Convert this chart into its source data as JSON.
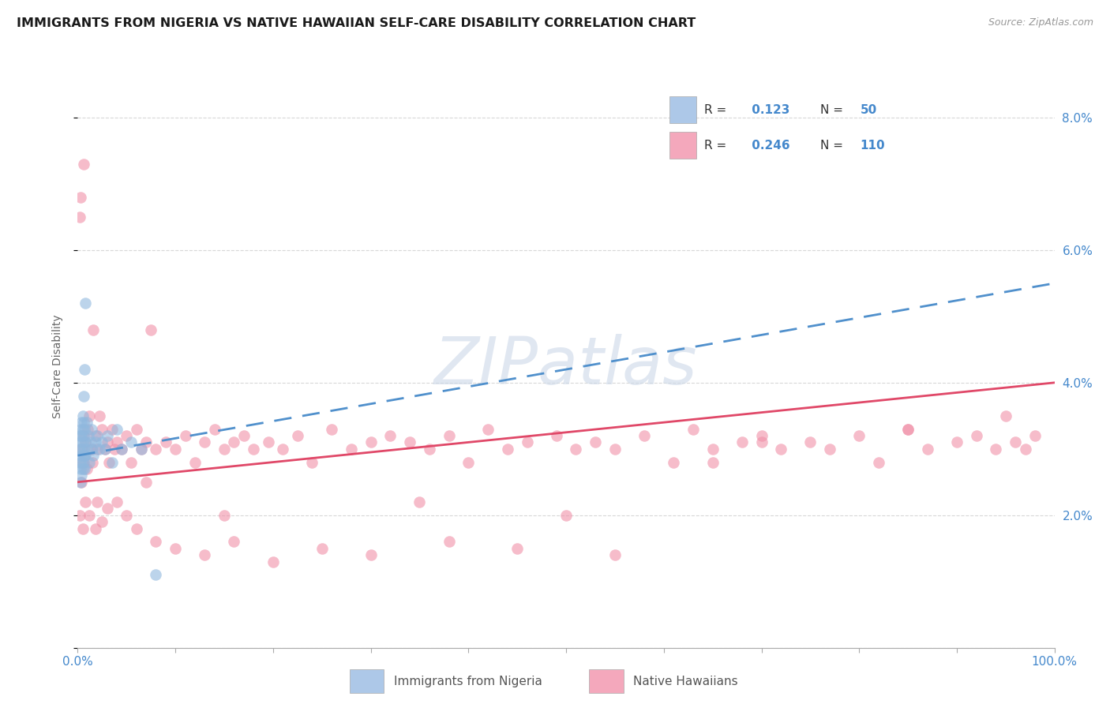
{
  "title": "IMMIGRANTS FROM NIGERIA VS NATIVE HAWAIIAN SELF-CARE DISABILITY CORRELATION CHART",
  "source": "Source: ZipAtlas.com",
  "ylabel": "Self-Care Disability",
  "watermark": "ZIPatlas",
  "xlim": [
    0,
    1.0
  ],
  "ylim": [
    0,
    0.085
  ],
  "legend": {
    "series1_color": "#adc8e8",
    "series2_color": "#f4a8bc",
    "series1_R": "0.123",
    "series1_N": "50",
    "series2_R": "0.246",
    "series2_N": "110"
  },
  "series1_color": "#90b8de",
  "series2_color": "#f090a8",
  "trendline1_color": "#5090cc",
  "trendline2_color": "#e04868",
  "background_color": "#ffffff",
  "grid_color": "#d8d8d8",
  "nigeria_x": [
    0.001,
    0.002,
    0.002,
    0.003,
    0.003,
    0.003,
    0.003,
    0.003,
    0.004,
    0.004,
    0.004,
    0.004,
    0.004,
    0.005,
    0.005,
    0.005,
    0.005,
    0.005,
    0.006,
    0.006,
    0.006,
    0.006,
    0.006,
    0.007,
    0.007,
    0.007,
    0.007,
    0.008,
    0.008,
    0.008,
    0.009,
    0.01,
    0.011,
    0.012,
    0.013,
    0.014,
    0.015,
    0.016,
    0.018,
    0.02,
    0.022,
    0.025,
    0.028,
    0.03,
    0.035,
    0.04,
    0.045,
    0.055,
    0.065,
    0.08
  ],
  "nigeria_y": [
    0.03,
    0.028,
    0.032,
    0.029,
    0.031,
    0.027,
    0.033,
    0.025,
    0.03,
    0.032,
    0.028,
    0.034,
    0.026,
    0.031,
    0.029,
    0.033,
    0.027,
    0.035,
    0.03,
    0.028,
    0.038,
    0.034,
    0.032,
    0.029,
    0.033,
    0.027,
    0.042,
    0.031,
    0.029,
    0.052,
    0.034,
    0.03,
    0.032,
    0.028,
    0.031,
    0.033,
    0.03,
    0.029,
    0.031,
    0.032,
    0.03,
    0.031,
    0.03,
    0.032,
    0.028,
    0.033,
    0.03,
    0.031,
    0.03,
    0.011
  ],
  "hawaiian_x": [
    0.002,
    0.003,
    0.004,
    0.005,
    0.006,
    0.006,
    0.007,
    0.008,
    0.009,
    0.01,
    0.012,
    0.014,
    0.015,
    0.016,
    0.018,
    0.02,
    0.022,
    0.025,
    0.028,
    0.03,
    0.032,
    0.035,
    0.038,
    0.04,
    0.045,
    0.05,
    0.055,
    0.06,
    0.065,
    0.07,
    0.075,
    0.08,
    0.09,
    0.1,
    0.11,
    0.12,
    0.13,
    0.14,
    0.15,
    0.16,
    0.17,
    0.18,
    0.195,
    0.21,
    0.225,
    0.24,
    0.26,
    0.28,
    0.3,
    0.32,
    0.34,
    0.36,
    0.38,
    0.4,
    0.42,
    0.44,
    0.46,
    0.49,
    0.51,
    0.53,
    0.55,
    0.58,
    0.61,
    0.63,
    0.65,
    0.68,
    0.7,
    0.72,
    0.75,
    0.77,
    0.8,
    0.82,
    0.85,
    0.87,
    0.9,
    0.92,
    0.94,
    0.96,
    0.97,
    0.98,
    0.004,
    0.008,
    0.012,
    0.018,
    0.025,
    0.03,
    0.04,
    0.05,
    0.06,
    0.08,
    0.1,
    0.13,
    0.16,
    0.2,
    0.25,
    0.3,
    0.38,
    0.45,
    0.55,
    0.65,
    0.002,
    0.005,
    0.02,
    0.07,
    0.15,
    0.35,
    0.5,
    0.7,
    0.85,
    0.95
  ],
  "hawaiian_y": [
    0.065,
    0.068,
    0.03,
    0.028,
    0.032,
    0.073,
    0.029,
    0.031,
    0.027,
    0.033,
    0.035,
    0.03,
    0.028,
    0.048,
    0.032,
    0.03,
    0.035,
    0.033,
    0.03,
    0.031,
    0.028,
    0.033,
    0.03,
    0.031,
    0.03,
    0.032,
    0.028,
    0.033,
    0.03,
    0.031,
    0.048,
    0.03,
    0.031,
    0.03,
    0.032,
    0.028,
    0.031,
    0.033,
    0.03,
    0.031,
    0.032,
    0.03,
    0.031,
    0.03,
    0.032,
    0.028,
    0.033,
    0.03,
    0.031,
    0.032,
    0.031,
    0.03,
    0.032,
    0.028,
    0.033,
    0.03,
    0.031,
    0.032,
    0.03,
    0.031,
    0.03,
    0.032,
    0.028,
    0.033,
    0.03,
    0.031,
    0.032,
    0.03,
    0.031,
    0.03,
    0.032,
    0.028,
    0.033,
    0.03,
    0.031,
    0.032,
    0.03,
    0.031,
    0.03,
    0.032,
    0.025,
    0.022,
    0.02,
    0.018,
    0.019,
    0.021,
    0.022,
    0.02,
    0.018,
    0.016,
    0.015,
    0.014,
    0.016,
    0.013,
    0.015,
    0.014,
    0.016,
    0.015,
    0.014,
    0.028,
    0.02,
    0.018,
    0.022,
    0.025,
    0.02,
    0.022,
    0.02,
    0.031,
    0.033,
    0.035
  ],
  "trendline1_x": [
    0.0,
    1.0
  ],
  "trendline1_y": [
    0.029,
    0.055
  ],
  "trendline2_x": [
    0.0,
    1.0
  ],
  "trendline2_y": [
    0.025,
    0.04
  ]
}
